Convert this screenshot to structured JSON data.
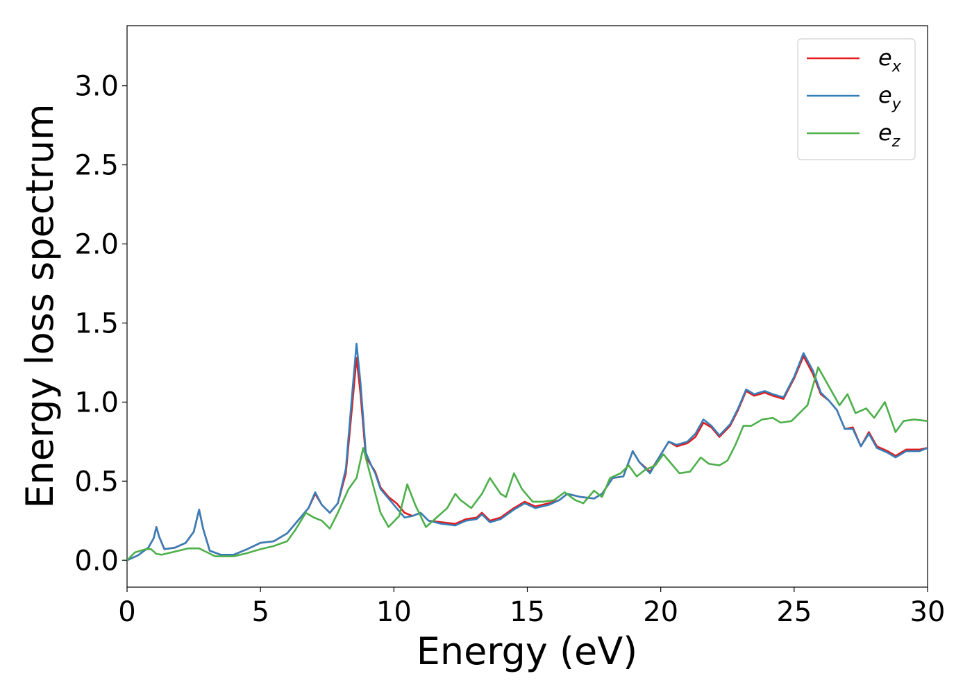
{
  "chart_data": {
    "type": "line",
    "xlabel": "Energy (eV)",
    "ylabel": "Energy loss spectrum",
    "xlim": [
      0,
      30
    ],
    "ylim": [
      -0.17,
      3.38
    ],
    "xticks": [
      0,
      5,
      10,
      15,
      20,
      25,
      30
    ],
    "yticks": [
      0.0,
      0.5,
      1.0,
      1.5,
      2.0,
      2.5,
      3.0
    ],
    "xtick_labels": [
      "0",
      "5",
      "10",
      "15",
      "20",
      "25",
      "30"
    ],
    "ytick_labels": [
      "0.0",
      "0.5",
      "1.0",
      "1.5",
      "2.0",
      "2.5",
      "3.0"
    ],
    "grid": false,
    "legend_position": "top-right",
    "series": [
      {
        "name": "e",
        "subscript": "x",
        "color": "#e41a1c",
        "points": [
          [
            0,
            0
          ],
          [
            0.4,
            0.03
          ],
          [
            0.8,
            0.08
          ],
          [
            1.0,
            0.14
          ],
          [
            1.1,
            0.21
          ],
          [
            1.2,
            0.15
          ],
          [
            1.4,
            0.07
          ],
          [
            1.8,
            0.08
          ],
          [
            2.2,
            0.11
          ],
          [
            2.5,
            0.18
          ],
          [
            2.7,
            0.32
          ],
          [
            2.85,
            0.2
          ],
          [
            3.1,
            0.06
          ],
          [
            3.5,
            0.035
          ],
          [
            4.0,
            0.035
          ],
          [
            4.5,
            0.07
          ],
          [
            5.0,
            0.11
          ],
          [
            5.5,
            0.12
          ],
          [
            6.0,
            0.17
          ],
          [
            6.5,
            0.27
          ],
          [
            6.8,
            0.33
          ],
          [
            7.05,
            0.42
          ],
          [
            7.3,
            0.35
          ],
          [
            7.6,
            0.3
          ],
          [
            7.9,
            0.36
          ],
          [
            8.2,
            0.55
          ],
          [
            8.45,
            1.0
          ],
          [
            8.6,
            1.28
          ],
          [
            8.75,
            1.05
          ],
          [
            8.95,
            0.65
          ],
          [
            9.15,
            0.6
          ],
          [
            9.3,
            0.56
          ],
          [
            9.5,
            0.46
          ],
          [
            9.8,
            0.4
          ],
          [
            10.1,
            0.36
          ],
          [
            10.4,
            0.3
          ],
          [
            10.7,
            0.28
          ],
          [
            11.0,
            0.3
          ],
          [
            11.3,
            0.25
          ],
          [
            11.8,
            0.24
          ],
          [
            12.3,
            0.23
          ],
          [
            12.7,
            0.26
          ],
          [
            13.1,
            0.27
          ],
          [
            13.3,
            0.3
          ],
          [
            13.6,
            0.25
          ],
          [
            14.0,
            0.27
          ],
          [
            14.5,
            0.33
          ],
          [
            14.9,
            0.37
          ],
          [
            15.3,
            0.34
          ],
          [
            15.8,
            0.36
          ],
          [
            16.2,
            0.38
          ],
          [
            16.5,
            0.42
          ],
          [
            17.0,
            0.4
          ],
          [
            17.5,
            0.39
          ],
          [
            17.8,
            0.42
          ],
          [
            18.2,
            0.52
          ],
          [
            18.6,
            0.53
          ],
          [
            18.95,
            0.69
          ],
          [
            19.2,
            0.62
          ],
          [
            19.6,
            0.56
          ],
          [
            19.9,
            0.64
          ],
          [
            20.3,
            0.75
          ],
          [
            20.6,
            0.72
          ],
          [
            21.0,
            0.74
          ],
          [
            21.3,
            0.78
          ],
          [
            21.6,
            0.87
          ],
          [
            21.9,
            0.84
          ],
          [
            22.2,
            0.78
          ],
          [
            22.6,
            0.85
          ],
          [
            22.9,
            0.95
          ],
          [
            23.2,
            1.07
          ],
          [
            23.5,
            1.04
          ],
          [
            23.9,
            1.06
          ],
          [
            24.2,
            1.04
          ],
          [
            24.6,
            1.02
          ],
          [
            25.0,
            1.15
          ],
          [
            25.35,
            1.29
          ],
          [
            25.7,
            1.18
          ],
          [
            26.0,
            1.05
          ],
          [
            26.3,
            1.01
          ],
          [
            26.6,
            0.95
          ],
          [
            26.9,
            0.83
          ],
          [
            27.2,
            0.84
          ],
          [
            27.5,
            0.72
          ],
          [
            27.8,
            0.81
          ],
          [
            28.1,
            0.72
          ],
          [
            28.5,
            0.69
          ],
          [
            28.8,
            0.66
          ],
          [
            29.2,
            0.7
          ],
          [
            29.7,
            0.7
          ],
          [
            30.0,
            0.71
          ]
        ]
      },
      {
        "name": "e",
        "subscript": "y",
        "color": "#377eb8",
        "points": [
          [
            0,
            0
          ],
          [
            0.4,
            0.03
          ],
          [
            0.8,
            0.08
          ],
          [
            1.0,
            0.14
          ],
          [
            1.1,
            0.21
          ],
          [
            1.2,
            0.15
          ],
          [
            1.4,
            0.07
          ],
          [
            1.8,
            0.08
          ],
          [
            2.2,
            0.11
          ],
          [
            2.5,
            0.18
          ],
          [
            2.7,
            0.32
          ],
          [
            2.85,
            0.2
          ],
          [
            3.1,
            0.06
          ],
          [
            3.5,
            0.035
          ],
          [
            4.0,
            0.035
          ],
          [
            4.5,
            0.07
          ],
          [
            5.0,
            0.11
          ],
          [
            5.5,
            0.12
          ],
          [
            6.0,
            0.17
          ],
          [
            6.5,
            0.27
          ],
          [
            6.8,
            0.33
          ],
          [
            7.05,
            0.43
          ],
          [
            7.3,
            0.35
          ],
          [
            7.6,
            0.3
          ],
          [
            7.9,
            0.36
          ],
          [
            8.2,
            0.58
          ],
          [
            8.45,
            1.08
          ],
          [
            8.6,
            1.37
          ],
          [
            8.75,
            1.12
          ],
          [
            8.95,
            0.68
          ],
          [
            9.15,
            0.6
          ],
          [
            9.3,
            0.55
          ],
          [
            9.5,
            0.45
          ],
          [
            9.8,
            0.39
          ],
          [
            10.1,
            0.33
          ],
          [
            10.4,
            0.27
          ],
          [
            10.7,
            0.28
          ],
          [
            11.0,
            0.3
          ],
          [
            11.3,
            0.25
          ],
          [
            11.8,
            0.23
          ],
          [
            12.3,
            0.22
          ],
          [
            12.7,
            0.25
          ],
          [
            13.1,
            0.26
          ],
          [
            13.3,
            0.29
          ],
          [
            13.6,
            0.24
          ],
          [
            14.0,
            0.26
          ],
          [
            14.5,
            0.32
          ],
          [
            14.9,
            0.36
          ],
          [
            15.3,
            0.33
          ],
          [
            15.8,
            0.35
          ],
          [
            16.2,
            0.38
          ],
          [
            16.5,
            0.42
          ],
          [
            17.0,
            0.4
          ],
          [
            17.5,
            0.39
          ],
          [
            17.8,
            0.42
          ],
          [
            18.2,
            0.52
          ],
          [
            18.6,
            0.53
          ],
          [
            18.95,
            0.69
          ],
          [
            19.2,
            0.62
          ],
          [
            19.6,
            0.55
          ],
          [
            19.9,
            0.64
          ],
          [
            20.3,
            0.75
          ],
          [
            20.6,
            0.73
          ],
          [
            21.0,
            0.75
          ],
          [
            21.3,
            0.8
          ],
          [
            21.6,
            0.89
          ],
          [
            21.9,
            0.85
          ],
          [
            22.2,
            0.79
          ],
          [
            22.6,
            0.86
          ],
          [
            22.9,
            0.96
          ],
          [
            23.2,
            1.08
          ],
          [
            23.5,
            1.05
          ],
          [
            23.9,
            1.07
          ],
          [
            24.2,
            1.05
          ],
          [
            24.6,
            1.03
          ],
          [
            25.0,
            1.16
          ],
          [
            25.35,
            1.31
          ],
          [
            25.7,
            1.2
          ],
          [
            26.0,
            1.06
          ],
          [
            26.3,
            1.01
          ],
          [
            26.6,
            0.95
          ],
          [
            26.9,
            0.83
          ],
          [
            27.2,
            0.83
          ],
          [
            27.5,
            0.72
          ],
          [
            27.8,
            0.8
          ],
          [
            28.1,
            0.71
          ],
          [
            28.5,
            0.68
          ],
          [
            28.8,
            0.65
          ],
          [
            29.2,
            0.69
          ],
          [
            29.7,
            0.69
          ],
          [
            30.0,
            0.71
          ]
        ]
      },
      {
        "name": "e",
        "subscript": "z",
        "color": "#4daf4a",
        "points": [
          [
            0,
            0
          ],
          [
            0.3,
            0.05
          ],
          [
            0.7,
            0.07
          ],
          [
            0.9,
            0.07
          ],
          [
            1.1,
            0.04
          ],
          [
            1.3,
            0.035
          ],
          [
            1.8,
            0.055
          ],
          [
            2.3,
            0.075
          ],
          [
            2.7,
            0.075
          ],
          [
            3.0,
            0.05
          ],
          [
            3.3,
            0.025
          ],
          [
            4.0,
            0.025
          ],
          [
            4.5,
            0.045
          ],
          [
            5.0,
            0.07
          ],
          [
            5.5,
            0.09
          ],
          [
            6.0,
            0.12
          ],
          [
            6.3,
            0.19
          ],
          [
            6.7,
            0.3
          ],
          [
            7.0,
            0.27
          ],
          [
            7.3,
            0.25
          ],
          [
            7.6,
            0.2
          ],
          [
            7.9,
            0.3
          ],
          [
            8.3,
            0.45
          ],
          [
            8.6,
            0.52
          ],
          [
            8.85,
            0.71
          ],
          [
            9.1,
            0.55
          ],
          [
            9.5,
            0.3
          ],
          [
            9.8,
            0.21
          ],
          [
            10.2,
            0.28
          ],
          [
            10.5,
            0.48
          ],
          [
            10.8,
            0.35
          ],
          [
            11.2,
            0.21
          ],
          [
            11.6,
            0.27
          ],
          [
            12.0,
            0.33
          ],
          [
            12.3,
            0.42
          ],
          [
            12.5,
            0.38
          ],
          [
            12.9,
            0.33
          ],
          [
            13.3,
            0.42
          ],
          [
            13.6,
            0.52
          ],
          [
            14.0,
            0.42
          ],
          [
            14.2,
            0.4
          ],
          [
            14.5,
            0.55
          ],
          [
            14.8,
            0.45
          ],
          [
            15.2,
            0.37
          ],
          [
            15.6,
            0.37
          ],
          [
            16.0,
            0.38
          ],
          [
            16.4,
            0.43
          ],
          [
            16.8,
            0.38
          ],
          [
            17.1,
            0.36
          ],
          [
            17.5,
            0.44
          ],
          [
            17.8,
            0.4
          ],
          [
            18.1,
            0.52
          ],
          [
            18.5,
            0.55
          ],
          [
            18.8,
            0.6
          ],
          [
            19.1,
            0.53
          ],
          [
            19.4,
            0.57
          ],
          [
            19.8,
            0.6
          ],
          [
            20.1,
            0.67
          ],
          [
            20.4,
            0.61
          ],
          [
            20.7,
            0.55
          ],
          [
            21.1,
            0.56
          ],
          [
            21.5,
            0.65
          ],
          [
            21.8,
            0.61
          ],
          [
            22.2,
            0.6
          ],
          [
            22.5,
            0.63
          ],
          [
            22.8,
            0.73
          ],
          [
            23.1,
            0.85
          ],
          [
            23.4,
            0.85
          ],
          [
            23.8,
            0.89
          ],
          [
            24.2,
            0.9
          ],
          [
            24.5,
            0.87
          ],
          [
            24.9,
            0.88
          ],
          [
            25.2,
            0.93
          ],
          [
            25.5,
            0.98
          ],
          [
            25.9,
            1.22
          ],
          [
            26.3,
            1.1
          ],
          [
            26.7,
            0.98
          ],
          [
            27.0,
            1.05
          ],
          [
            27.3,
            0.93
          ],
          [
            27.7,
            0.96
          ],
          [
            28.0,
            0.9
          ],
          [
            28.4,
            1.0
          ],
          [
            28.8,
            0.81
          ],
          [
            29.1,
            0.88
          ],
          [
            29.5,
            0.89
          ],
          [
            30.0,
            0.88
          ]
        ]
      }
    ]
  }
}
